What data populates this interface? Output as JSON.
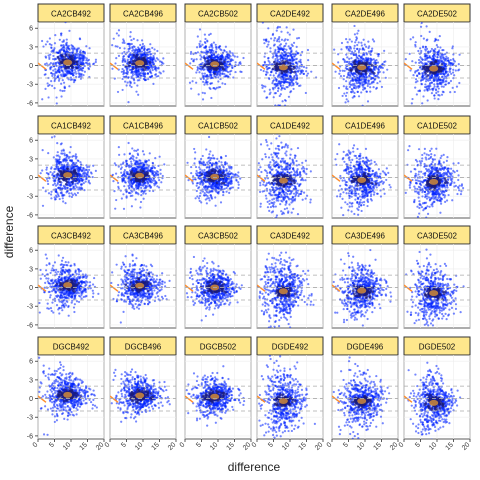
{
  "chart_data": {
    "type": "scatter",
    "facet_layout": {
      "rows": 4,
      "cols": 6
    },
    "xlabel": "difference",
    "ylabel": "difference",
    "xlim": [
      0,
      20
    ],
    "ylim": [
      -6.5,
      7
    ],
    "x_ticks": [
      "0",
      "5",
      "10",
      "15",
      "20"
    ],
    "y_ticks": [
      "-6",
      "-3",
      "0",
      "3",
      "6"
    ],
    "reference_lines_y": [
      -2,
      0,
      2
    ],
    "strip_fill": "#fee78c",
    "point_color": "#0022ff",
    "density_core_color": "#d08a3a",
    "panels": [
      {
        "label": "CA2CB492",
        "center": [
          9,
          0.5
        ],
        "spread_x": 3.2,
        "spread_y": 1.6
      },
      {
        "label": "CA2CB496",
        "center": [
          9,
          0.4
        ],
        "spread_x": 3.0,
        "spread_y": 1.5
      },
      {
        "label": "CA2CB502",
        "center": [
          9,
          0.2
        ],
        "spread_x": 3.0,
        "spread_y": 1.5
      },
      {
        "label": "CA2DE492",
        "center": [
          8,
          -0.3
        ],
        "spread_x": 3.0,
        "spread_y": 2.3
      },
      {
        "label": "CA2DE496",
        "center": [
          9,
          -0.3
        ],
        "spread_x": 3.0,
        "spread_y": 2.0
      },
      {
        "label": "CA2DE502",
        "center": [
          9,
          -0.5
        ],
        "spread_x": 3.0,
        "spread_y": 2.1
      },
      {
        "label": "CA1CB492",
        "center": [
          9,
          0.4
        ],
        "spread_x": 3.2,
        "spread_y": 1.6
      },
      {
        "label": "CA1CB496",
        "center": [
          9,
          0.3
        ],
        "spread_x": 3.0,
        "spread_y": 1.5
      },
      {
        "label": "CA1CB502",
        "center": [
          9,
          0.1
        ],
        "spread_x": 3.0,
        "spread_y": 1.5
      },
      {
        "label": "CA1DE492",
        "center": [
          8,
          -0.5
        ],
        "spread_x": 3.0,
        "spread_y": 2.4
      },
      {
        "label": "CA1DE496",
        "center": [
          9,
          -0.4
        ],
        "spread_x": 3.0,
        "spread_y": 2.0
      },
      {
        "label": "CA1DE502",
        "center": [
          9,
          -0.7
        ],
        "spread_x": 3.0,
        "spread_y": 2.1
      },
      {
        "label": "CA3CB492",
        "center": [
          9,
          0.4
        ],
        "spread_x": 3.2,
        "spread_y": 1.6
      },
      {
        "label": "CA3CB496",
        "center": [
          9,
          0.3
        ],
        "spread_x": 3.0,
        "spread_y": 1.5
      },
      {
        "label": "CA3CB502",
        "center": [
          9,
          0.0
        ],
        "spread_x": 3.0,
        "spread_y": 1.5
      },
      {
        "label": "CA3DE492",
        "center": [
          8,
          -0.6
        ],
        "spread_x": 3.0,
        "spread_y": 2.3
      },
      {
        "label": "CA3DE496",
        "center": [
          9,
          -0.5
        ],
        "spread_x": 3.0,
        "spread_y": 2.0
      },
      {
        "label": "CA3DE502",
        "center": [
          9,
          -0.9
        ],
        "spread_x": 3.0,
        "spread_y": 2.1
      },
      {
        "label": "DGCB492",
        "center": [
          9,
          0.6
        ],
        "spread_x": 3.2,
        "spread_y": 1.6
      },
      {
        "label": "DGCB496",
        "center": [
          9,
          0.5
        ],
        "spread_x": 3.0,
        "spread_y": 1.5
      },
      {
        "label": "DGCB502",
        "center": [
          9,
          0.3
        ],
        "spread_x": 3.0,
        "spread_y": 1.5
      },
      {
        "label": "DGDE492",
        "center": [
          8,
          -0.4
        ],
        "spread_x": 3.0,
        "spread_y": 2.3
      },
      {
        "label": "DGDE496",
        "center": [
          9,
          -0.4
        ],
        "spread_x": 3.0,
        "spread_y": 2.0
      },
      {
        "label": "DGDE502",
        "center": [
          9,
          -0.7
        ],
        "spread_x": 3.0,
        "spread_y": 2.1
      }
    ]
  }
}
